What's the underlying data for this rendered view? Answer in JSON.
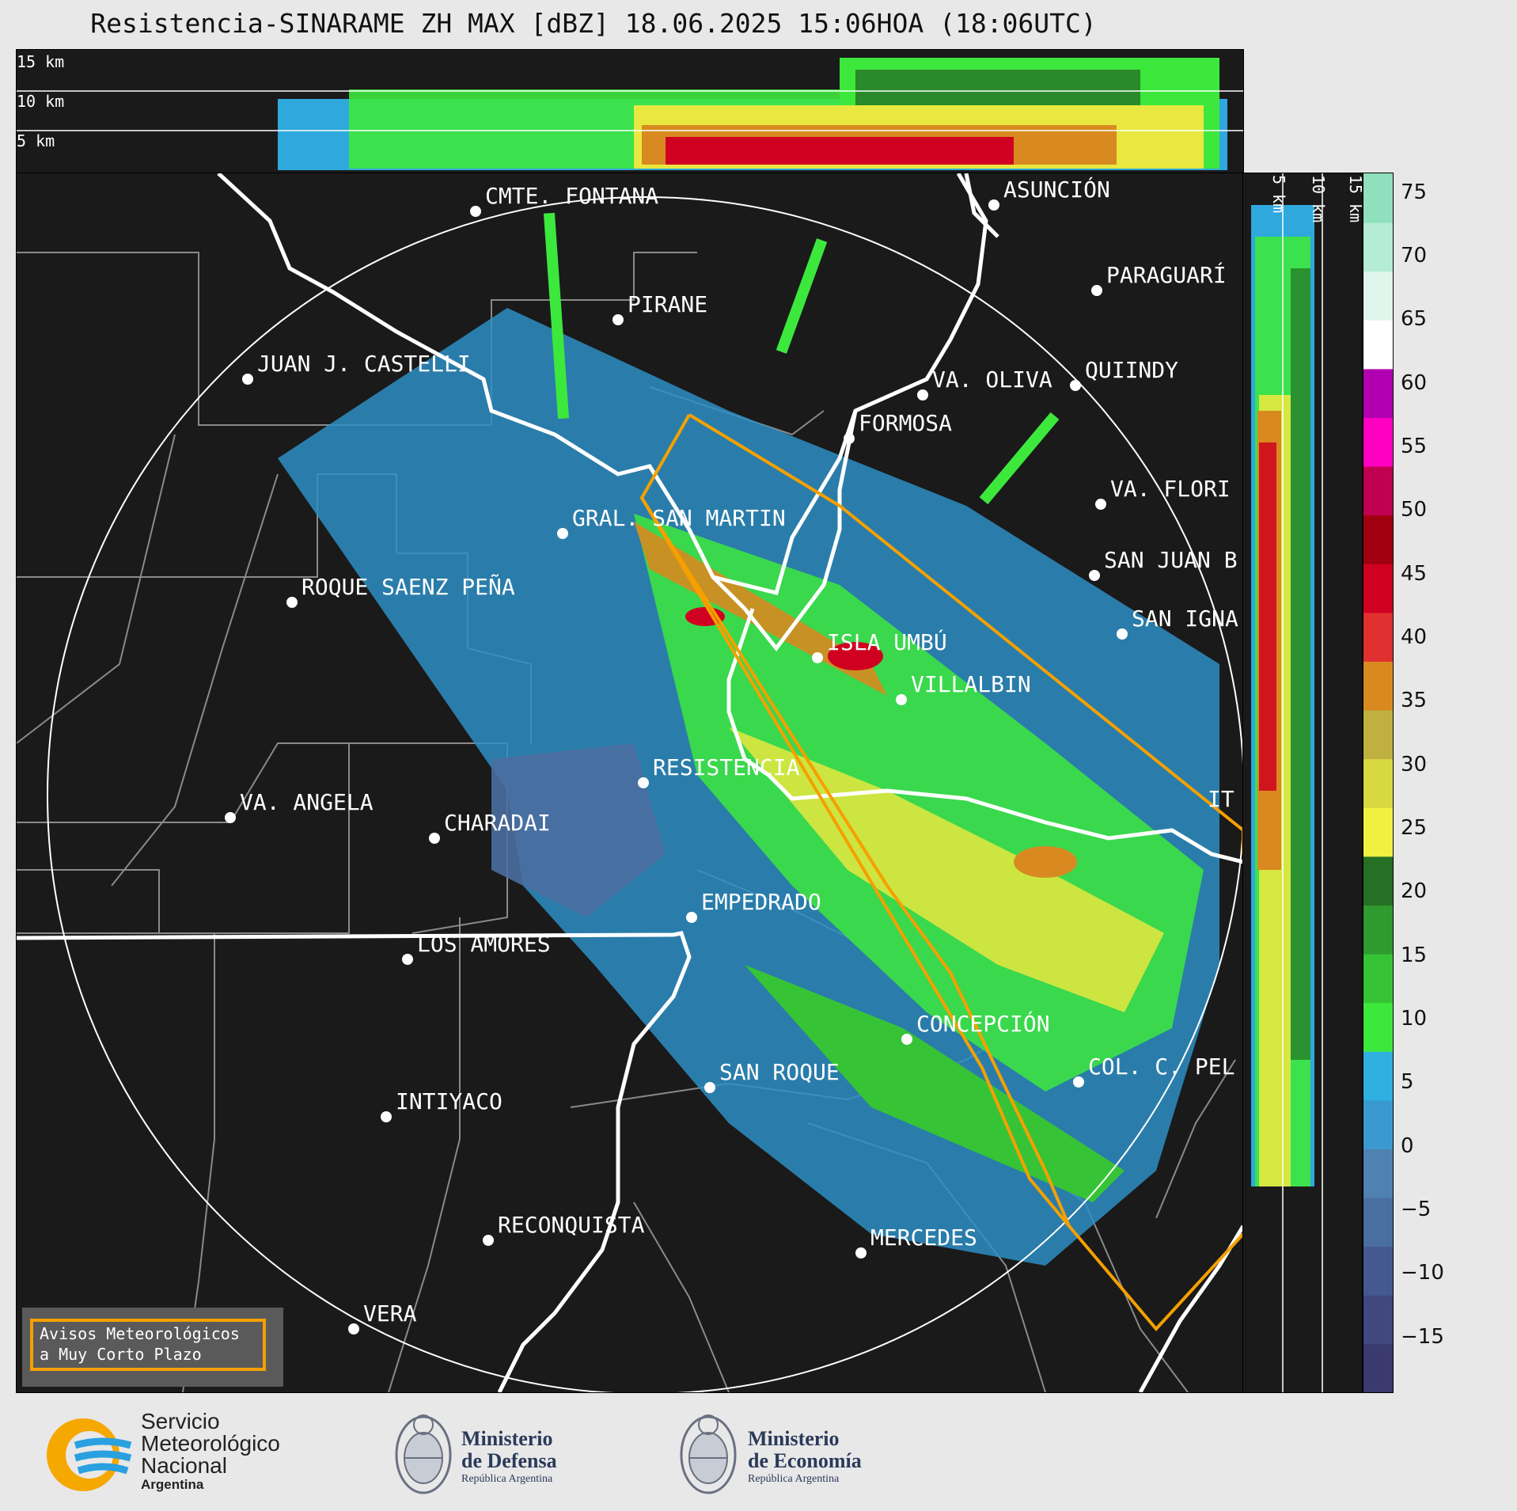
{
  "title": "Resistencia-SINARAME ZH MAX [dBZ] 18.06.2025 15:06HOA (18:06UTC)",
  "top_panel": {
    "height_labels": [
      "15 km",
      "10 km",
      "5 km"
    ]
  },
  "side_panel": {
    "height_labels": [
      "5 km",
      "10 km",
      "15 km"
    ]
  },
  "colorbar": {
    "ticks": [
      "75",
      "70",
      "65",
      "60",
      "55",
      "50",
      "45",
      "40",
      "35",
      "30",
      "25",
      "20",
      "15",
      "10",
      "5",
      "0",
      "−5",
      "−10",
      "−15"
    ],
    "colors": [
      "#3a3a6e",
      "#40487e",
      "#44598f",
      "#4a6ea0",
      "#4f82b0",
      "#3a9ad0",
      "#2fb0e0",
      "#3de83d",
      "#36c436",
      "#2f9a2f",
      "#257025",
      "#f0f040",
      "#d8d840",
      "#c0b040",
      "#d88a20",
      "#e03030",
      "#d00020",
      "#a00010",
      "#c00050",
      "#ff00c0",
      "#b000b0",
      "#ffffff",
      "#e0f5ec",
      "#b5ecd6",
      "#8fe0bd"
    ]
  },
  "cities": [
    {
      "name": "CMTE. FONTANA"
    },
    {
      "name": "ASUNCIÓN"
    },
    {
      "name": "PARAGUARÍ"
    },
    {
      "name": "PIRANE"
    },
    {
      "name": "JUAN J. CASTELLI"
    },
    {
      "name": "VA. OLIVA"
    },
    {
      "name": "QUIINDY"
    },
    {
      "name": "FORMOSA"
    },
    {
      "name": "VA. FLORI"
    },
    {
      "name": "GRAL. SAN MARTIN"
    },
    {
      "name": "SAN JUAN B"
    },
    {
      "name": "ROQUE SAENZ PEÑA"
    },
    {
      "name": "SAN IGNA"
    },
    {
      "name": "ISLA UMBÚ"
    },
    {
      "name": "VILLALBIN"
    },
    {
      "name": "RESISTENCIA"
    },
    {
      "name": "IT"
    },
    {
      "name": "VA. ANGELA"
    },
    {
      "name": "CHARADAI"
    },
    {
      "name": "EMPEDRADO"
    },
    {
      "name": "LOS AMORES"
    },
    {
      "name": "CONCEPCIÓN"
    },
    {
      "name": "COL. C. PEL"
    },
    {
      "name": "SAN ROQUE"
    },
    {
      "name": "INTIYACO"
    },
    {
      "name": "RECONQUISTA"
    },
    {
      "name": "MERCEDES"
    },
    {
      "name": "VERA"
    }
  ],
  "warning_box": {
    "line1": "Avisos Meteorológicos",
    "line2": "a Muy Corto Plazo"
  },
  "footer": {
    "smn": {
      "line1": "Servicio",
      "line2": "Meteorológico",
      "line3": "Nacional",
      "line4": "Argentina"
    },
    "defensa": {
      "line1": "Ministerio",
      "line2": "de Defensa",
      "line3": "República Argentina"
    },
    "economia": {
      "line1": "Ministerio",
      "line2": "de Economía",
      "line3": "República Argentina"
    }
  }
}
